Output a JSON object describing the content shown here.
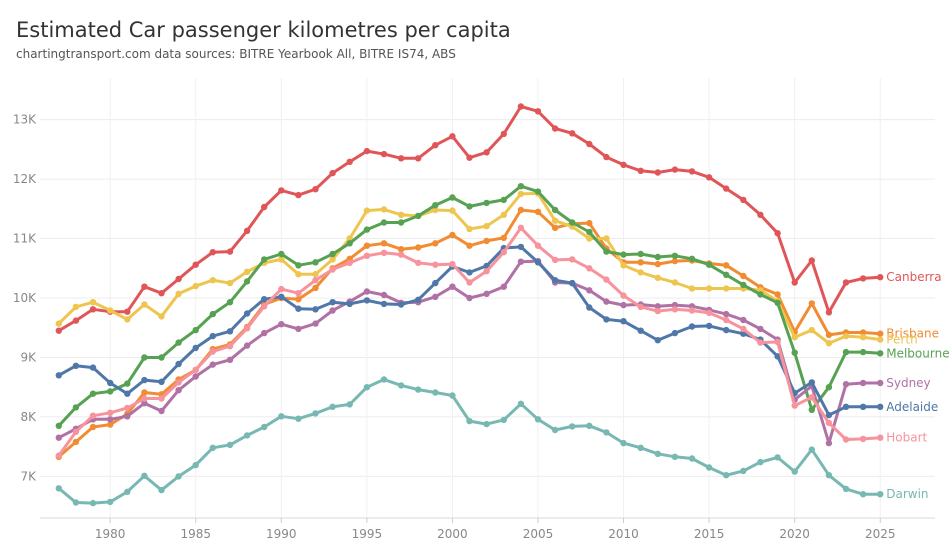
{
  "title": "Estimated Car passenger kilometres per capita",
  "subtitle": "chartingtransport.com  data sources: BITRE Yearbook All, BITRE IS74, ABS",
  "chart_data": {
    "type": "line",
    "xlabel": "",
    "ylabel": "",
    "x_ticks": [
      1980,
      1985,
      1990,
      1995,
      2000,
      2005,
      2010,
      2015,
      2020,
      2025
    ],
    "y_ticks": [
      7000,
      8000,
      9000,
      10000,
      11000,
      12000,
      13000
    ],
    "y_tick_labels": [
      "7K",
      "8K",
      "9K",
      "10K",
      "11K",
      "12K",
      "13K"
    ],
    "xlim": [
      1975.9,
      2028.2
    ],
    "ylim": [
      6300,
      13700
    ],
    "grid": true,
    "legend": "end-of-line labels",
    "x": [
      1977,
      1978,
      1979,
      1980,
      1981,
      1982,
      1983,
      1984,
      1985,
      1986,
      1987,
      1988,
      1989,
      1990,
      1991,
      1992,
      1993,
      1994,
      1995,
      1996,
      1997,
      1998,
      1999,
      2000,
      2001,
      2002,
      2003,
      2004,
      2005,
      2006,
      2007,
      2008,
      2009,
      2010,
      2011,
      2012,
      2013,
      2014,
      2015,
      2016,
      2017,
      2018,
      2019,
      2020,
      2021,
      2022,
      2023,
      2024,
      2025
    ],
    "series": [
      {
        "name": "Canberra",
        "color": "#e05658",
        "values": [
          9450,
          9620,
          9810,
          9770,
          9770,
          10190,
          10080,
          10320,
          10560,
          10770,
          10780,
          11130,
          11530,
          11810,
          11730,
          11830,
          12100,
          12290,
          12470,
          12420,
          12350,
          12350,
          12570,
          12720,
          12360,
          12450,
          12760,
          13220,
          13140,
          12850,
          12770,
          12590,
          12370,
          12240,
          12140,
          12110,
          12160,
          12130,
          12030,
          11840,
          11650,
          11400,
          11090,
          10260,
          10630,
          9760,
          10260,
          10330,
          10350
        ]
      },
      {
        "name": "Brisbane",
        "color": "#f18c33",
        "values": [
          7330,
          7580,
          7830,
          7870,
          8050,
          8410,
          8380,
          8630,
          8790,
          9140,
          9220,
          9510,
          9890,
          10000,
          9980,
          10170,
          10500,
          10660,
          10880,
          10920,
          10820,
          10850,
          10920,
          11060,
          10880,
          10960,
          11010,
          11480,
          11450,
          11180,
          11250,
          11260,
          10830,
          10600,
          10600,
          10570,
          10620,
          10630,
          10580,
          10550,
          10370,
          10180,
          10060,
          9430,
          9910,
          9380,
          9420,
          9420,
          9400
        ]
      },
      {
        "name": "Perth",
        "color": "#eec54f",
        "values": [
          9570,
          9850,
          9930,
          9790,
          9640,
          9890,
          9690,
          10070,
          10200,
          10300,
          10250,
          10440,
          10590,
          10650,
          10400,
          10400,
          10650,
          11000,
          11470,
          11490,
          11400,
          11380,
          11480,
          11470,
          11160,
          11210,
          11400,
          11750,
          11760,
          11300,
          11200,
          11000,
          11000,
          10550,
          10430,
          10340,
          10260,
          10160,
          10160,
          10160,
          10160,
          10130,
          9950,
          9340,
          9460,
          9240,
          9360,
          9340,
          9300
        ]
      },
      {
        "name": "Melbourne",
        "color": "#57a152",
        "values": [
          7850,
          8160,
          8390,
          8430,
          8560,
          9000,
          9000,
          9250,
          9460,
          9730,
          9930,
          10280,
          10650,
          10740,
          10550,
          10600,
          10740,
          10920,
          11150,
          11270,
          11270,
          11380,
          11560,
          11690,
          11540,
          11600,
          11650,
          11880,
          11790,
          11480,
          11270,
          11110,
          10780,
          10730,
          10740,
          10690,
          10710,
          10660,
          10560,
          10390,
          10220,
          10060,
          9920,
          9080,
          8120,
          8500,
          9090,
          9090,
          9070
        ]
      },
      {
        "name": "Sydney",
        "color": "#b072a4",
        "values": [
          7650,
          7800,
          7960,
          7960,
          8010,
          8230,
          8100,
          8450,
          8680,
          8880,
          8960,
          9200,
          9410,
          9560,
          9480,
          9570,
          9790,
          9940,
          10110,
          10050,
          9920,
          9930,
          10020,
          10190,
          10000,
          10070,
          10190,
          10610,
          10620,
          10260,
          10250,
          10130,
          9940,
          9880,
          9890,
          9860,
          9880,
          9860,
          9800,
          9730,
          9630,
          9480,
          9300,
          8290,
          8520,
          7560,
          8550,
          8570,
          8570
        ]
      },
      {
        "name": "Adelaide",
        "color": "#4f77a8",
        "values": [
          8700,
          8860,
          8830,
          8570,
          8390,
          8620,
          8590,
          8890,
          9160,
          9360,
          9440,
          9740,
          9980,
          10020,
          9820,
          9810,
          9930,
          9900,
          9960,
          9900,
          9890,
          9970,
          10250,
          10530,
          10430,
          10540,
          10840,
          10860,
          10600,
          10300,
          10250,
          9840,
          9640,
          9610,
          9450,
          9290,
          9410,
          9520,
          9530,
          9460,
          9400,
          9300,
          9020,
          8400,
          8580,
          8030,
          8170,
          8170,
          8170
        ]
      },
      {
        "name": "Hobart",
        "color": "#f7939d",
        "values": [
          7350,
          7750,
          8020,
          8070,
          8150,
          8310,
          8310,
          8580,
          8790,
          9100,
          9190,
          9490,
          9860,
          10150,
          10080,
          10300,
          10480,
          10590,
          10710,
          10760,
          10730,
          10590,
          10560,
          10570,
          10260,
          10450,
          10770,
          11180,
          10880,
          10640,
          10650,
          10500,
          10310,
          10040,
          9850,
          9780,
          9810,
          9790,
          9750,
          9630,
          9480,
          9250,
          9260,
          8190,
          8330,
          7900,
          7620,
          7630,
          7650
        ]
      },
      {
        "name": "Darwin",
        "color": "#78b8b2",
        "values": [
          6800,
          6560,
          6550,
          6570,
          6740,
          7010,
          6770,
          7000,
          7190,
          7480,
          7530,
          7690,
          7830,
          8010,
          7970,
          8060,
          8170,
          8210,
          8500,
          8630,
          8530,
          8460,
          8410,
          8360,
          7930,
          7880,
          7950,
          8220,
          7960,
          7780,
          7840,
          7850,
          7740,
          7560,
          7480,
          7380,
          7330,
          7300,
          7150,
          7020,
          7090,
          7240,
          7320,
          7080,
          7450,
          7020,
          6790,
          6700,
          6700
        ]
      }
    ]
  }
}
